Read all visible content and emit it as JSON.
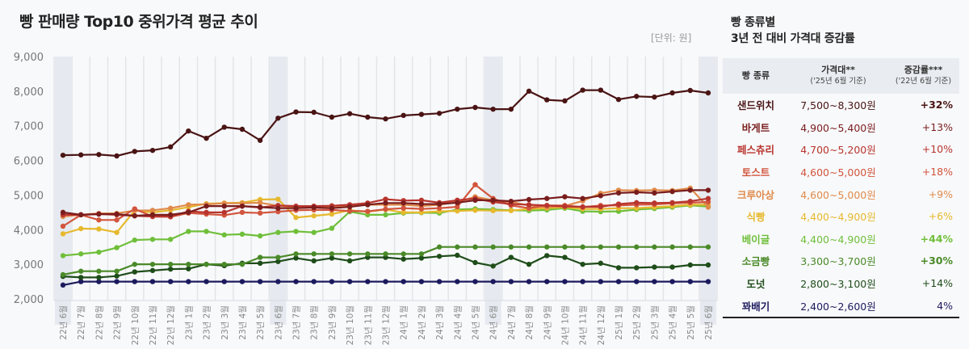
{
  "header": {
    "title": "빵 판매량 Top10 중위가격 평균 추이",
    "unit": "[단위: 원]"
  },
  "side": {
    "title_line1": "빵 종류별",
    "title_line2": "3년 전 대비 가격대 증감률"
  },
  "table": {
    "headers": {
      "col1": "빵 종류",
      "col2": "가격대**",
      "col2_sub": "('25년 6월 기준)",
      "col3": "증감률***",
      "col3_sub": "('22년 6월 기준)"
    },
    "rows": [
      {
        "name": "샌드위치",
        "range": "7,500~8,300원",
        "change": "+32%",
        "color": "#4a1414",
        "bold": true
      },
      {
        "name": "바게트",
        "range": "4,900~5,400원",
        "change": "+13%",
        "color": "#7a1d1d",
        "bold": false
      },
      {
        "name": "페스츄리",
        "range": "4,700~5,200원",
        "change": "+10%",
        "color": "#b8352e",
        "bold": false
      },
      {
        "name": "토스트",
        "range": "4,600~5,000원",
        "change": "+18%",
        "color": "#d2553d",
        "bold": false
      },
      {
        "name": "크루아상",
        "range": "4,600~5,000원",
        "change": "+9%",
        "color": "#e08a4a",
        "bold": false
      },
      {
        "name": "식빵",
        "range": "4,400~4,900원",
        "change": "+6%",
        "color": "#e6b92e",
        "bold": false
      },
      {
        "name": "베이글",
        "range": "4,400~4,900원",
        "change": "+44%",
        "color": "#6fbf3a",
        "bold": true
      },
      {
        "name": "소금빵",
        "range": "3,300~3,700원",
        "change": "+30%",
        "color": "#4a8a28",
        "bold": true
      },
      {
        "name": "도넛",
        "range": "2,800~3,100원",
        "change": "+14%",
        "color": "#1f4d1a",
        "bold": false
      },
      {
        "name": "꽈배기",
        "range": "2,400~2,600원",
        "change": "4%",
        "color": "#1c1a5e",
        "bold": false
      }
    ]
  },
  "chart_data": {
    "type": "line",
    "title": "빵 판매량 Top10 중위가격 평균 추이",
    "xlabel": "",
    "ylabel": "",
    "unit": "[단위: 원]",
    "ylim": [
      2000,
      9000
    ],
    "yticks": [
      2000,
      3000,
      4000,
      5000,
      6000,
      7000,
      8000,
      9000
    ],
    "ytick_labels": [
      "2,000",
      "3,000",
      "4,000",
      "5,000",
      "6,000",
      "7,000",
      "8,000",
      "9,000"
    ],
    "grid": true,
    "highlighted_months": [
      "22년 6월",
      "23년 6월",
      "24년 6월",
      "25년 6월"
    ],
    "x": [
      "22년 6월",
      "22년 7월",
      "22년 8월",
      "22년 9월",
      "22년 10월",
      "22년 11월",
      "22년 12월",
      "23년 1월",
      "23년 2월",
      "23년 3월",
      "23년 4월",
      "23년 5월",
      "23년 6월",
      "23년 7월",
      "23년 8월",
      "23년 9월",
      "23년 10월",
      "23년 11월",
      "23년 12월",
      "24년 1월",
      "24년 2월",
      "24년 3월",
      "24년 4월",
      "24년 5월",
      "24년 6월",
      "24년 7월",
      "24년 8월",
      "24년 9월",
      "24년 10월",
      "24년 11월",
      "24년 12월",
      "25년 1월",
      "25년 2월",
      "25년 3월",
      "25년 4월",
      "25년 5월",
      "25년 6월"
    ],
    "series": [
      {
        "name": "샌드위치",
        "color": "#4a1414",
        "values": [
          6150,
          6160,
          6170,
          6130,
          6260,
          6290,
          6390,
          6850,
          6640,
          6960,
          6900,
          6580,
          7220,
          7400,
          7390,
          7250,
          7350,
          7250,
          7200,
          7300,
          7330,
          7360,
          7480,
          7530,
          7480,
          7480,
          8000,
          7750,
          7720,
          8030,
          8030,
          7760,
          7850,
          7830,
          7950,
          8020,
          7950
        ]
      },
      {
        "name": "바게트",
        "color": "#7a1d1d",
        "values": [
          4500,
          4430,
          4450,
          4450,
          4400,
          4430,
          4430,
          4500,
          4680,
          4680,
          4680,
          4650,
          4620,
          4620,
          4640,
          4620,
          4660,
          4720,
          4770,
          4770,
          4740,
          4740,
          4780,
          4850,
          4850,
          4820,
          4870,
          4900,
          4950,
          4900,
          4980,
          5060,
          5080,
          5060,
          5100,
          5140,
          5140
        ]
      },
      {
        "name": "페스츄리",
        "color": "#b8352e",
        "values": [
          4430,
          4430,
          4450,
          4430,
          4400,
          4380,
          4380,
          4530,
          4500,
          4500,
          4680,
          4640,
          4700,
          4680,
          4680,
          4690,
          4720,
          4770,
          4880,
          4840,
          4850,
          4780,
          4850,
          4900,
          4800,
          4740,
          4720,
          4700,
          4670,
          4660,
          4660,
          4740,
          4780,
          4770,
          4780,
          4820,
          4900
        ]
      },
      {
        "name": "토스트",
        "color": "#d2553d",
        "values": [
          4100,
          4430,
          4280,
          4280,
          4600,
          4380,
          4370,
          4480,
          4450,
          4420,
          4500,
          4480,
          4520,
          4560,
          4570,
          4570,
          4540,
          4530,
          4590,
          4620,
          4600,
          4620,
          4660,
          5300,
          4900,
          4700,
          4620,
          4700,
          4700,
          4650,
          4700,
          4700,
          4720,
          4730,
          4760,
          4780,
          4800
        ]
      },
      {
        "name": "크루아상",
        "color": "#e08a4a",
        "values": [
          4380,
          4430,
          4470,
          4470,
          4550,
          4560,
          4620,
          4720,
          4730,
          4760,
          4760,
          4780,
          4690,
          4640,
          4640,
          4650,
          4700,
          4720,
          4720,
          4720,
          4680,
          4720,
          4800,
          4950,
          4850,
          4800,
          4700,
          4650,
          4680,
          4830,
          5050,
          5140,
          5130,
          5140,
          5130,
          5200,
          4650
        ]
      },
      {
        "name": "식빵",
        "color": "#e6b92e",
        "values": [
          3880,
          4030,
          4020,
          3920,
          4550,
          4500,
          4560,
          4650,
          4750,
          4770,
          4780,
          4870,
          4880,
          4350,
          4400,
          4450,
          4560,
          4520,
          4580,
          4500,
          4500,
          4530,
          4540,
          4560,
          4550,
          4550,
          4600,
          4620,
          4650,
          4600,
          4600,
          4620,
          4620,
          4650,
          4680,
          4720,
          4720
        ]
      },
      {
        "name": "베이글",
        "color": "#6fbf3a",
        "values": [
          3250,
          3300,
          3350,
          3480,
          3700,
          3720,
          3720,
          3950,
          3950,
          3850,
          3870,
          3820,
          3920,
          3950,
          3920,
          4040,
          4520,
          4430,
          4430,
          4480,
          4490,
          4480,
          4580,
          4600,
          4580,
          4560,
          4550,
          4570,
          4620,
          4530,
          4520,
          4530,
          4580,
          4610,
          4650,
          4700,
          4670
        ]
      },
      {
        "name": "소금빵",
        "color": "#4a8a28",
        "values": [
          2700,
          2800,
          2800,
          2800,
          3000,
          3000,
          3000,
          3000,
          3000,
          3000,
          3000,
          3200,
          3200,
          3300,
          3300,
          3300,
          3300,
          3300,
          3300,
          3300,
          3300,
          3500,
          3500,
          3500,
          3500,
          3500,
          3500,
          3500,
          3500,
          3500,
          3500,
          3500,
          3500,
          3500,
          3500,
          3500,
          3500
        ]
      },
      {
        "name": "도넛",
        "color": "#1f4d1a",
        "values": [
          2650,
          2620,
          2620,
          2660,
          2780,
          2820,
          2860,
          2870,
          3000,
          2960,
          3030,
          3030,
          3080,
          3180,
          3100,
          3180,
          3100,
          3200,
          3200,
          3150,
          3180,
          3230,
          3260,
          3050,
          2950,
          3200,
          3000,
          3250,
          3200,
          3000,
          3030,
          2900,
          2900,
          2920,
          2920,
          2980,
          2980
        ]
      },
      {
        "name": "꽈배기",
        "color": "#1c1a5e",
        "values": [
          2400,
          2500,
          2500,
          2500,
          2500,
          2500,
          2500,
          2500,
          2500,
          2500,
          2500,
          2500,
          2500,
          2500,
          2500,
          2500,
          2500,
          2500,
          2500,
          2500,
          2500,
          2500,
          2500,
          2500,
          2500,
          2500,
          2500,
          2500,
          2500,
          2500,
          2500,
          2500,
          2500,
          2500,
          2500,
          2500,
          2500
        ]
      }
    ]
  }
}
